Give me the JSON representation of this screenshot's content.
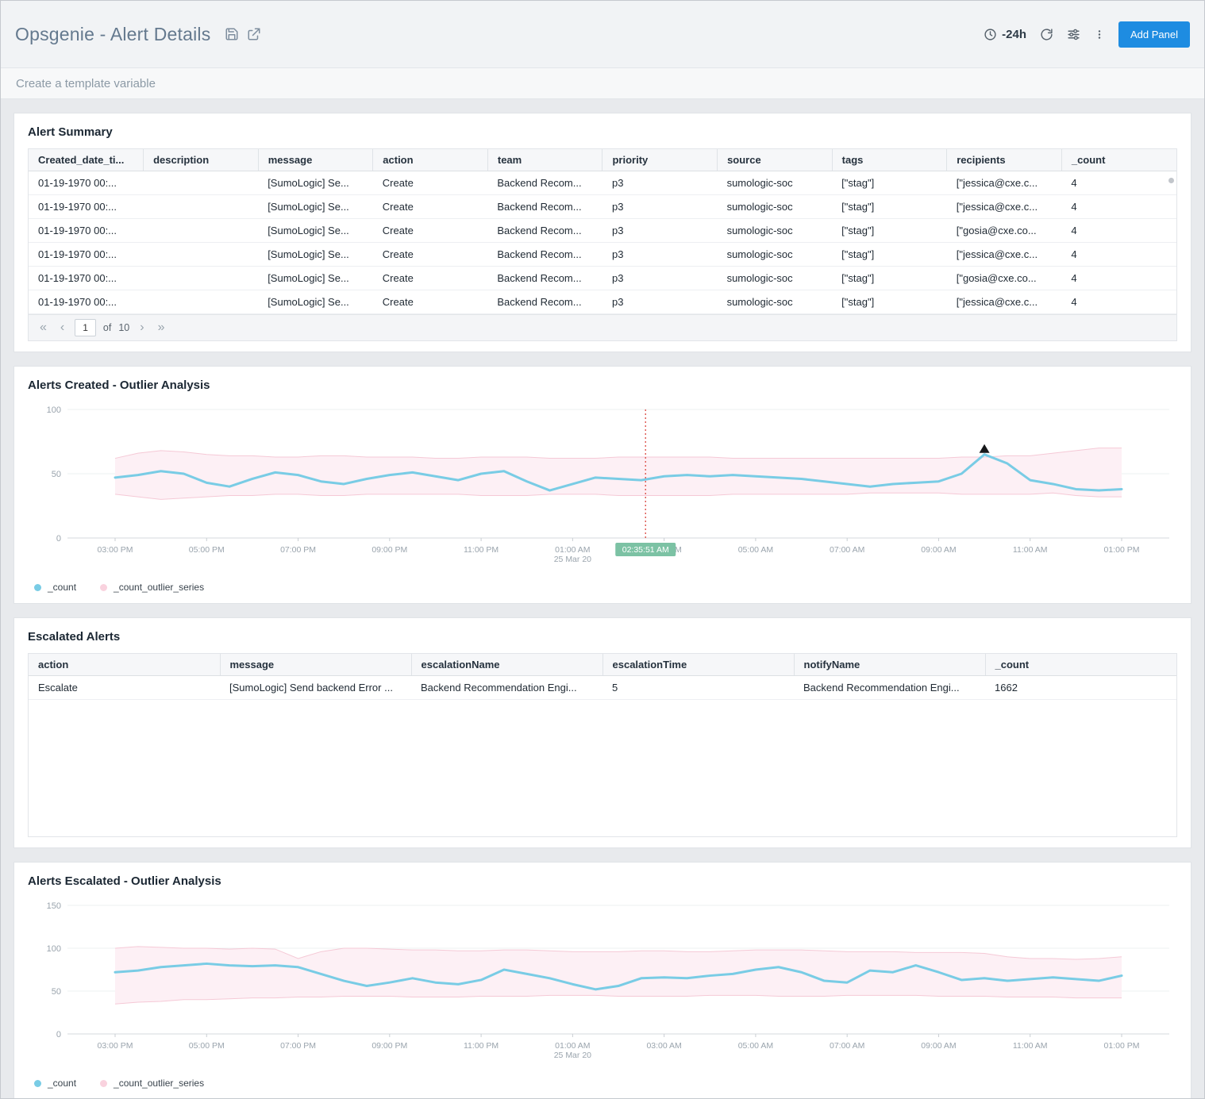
{
  "header": {
    "title": "Opsgenie - Alert Details",
    "time_range": "-24h",
    "add_panel_label": "Add Panel"
  },
  "template_bar": {
    "label": "Create a template variable"
  },
  "panels": {
    "alert_summary": {
      "title": "Alert Summary",
      "table": {
        "columns": [
          "Created_date_ti...",
          "description",
          "message",
          "action",
          "team",
          "priority",
          "source",
          "tags",
          "recipients",
          "_count"
        ],
        "rows": [
          [
            "01-19-1970 00:...",
            "",
            "[SumoLogic] Se...",
            "Create",
            "Backend Recom...",
            "p3",
            "sumologic-soc",
            "[\"stag\"]",
            "[\"jessica@cxe.c...",
            "4"
          ],
          [
            "01-19-1970 00:...",
            "",
            "[SumoLogic] Se...",
            "Create",
            "Backend Recom...",
            "p3",
            "sumologic-soc",
            "[\"stag\"]",
            "[\"jessica@cxe.c...",
            "4"
          ],
          [
            "01-19-1970 00:...",
            "",
            "[SumoLogic] Se...",
            "Create",
            "Backend Recom...",
            "p3",
            "sumologic-soc",
            "[\"stag\"]",
            "[\"gosia@cxe.co...",
            "4"
          ],
          [
            "01-19-1970 00:...",
            "",
            "[SumoLogic] Se...",
            "Create",
            "Backend Recom...",
            "p3",
            "sumologic-soc",
            "[\"stag\"]",
            "[\"jessica@cxe.c...",
            "4"
          ],
          [
            "01-19-1970 00:...",
            "",
            "[SumoLogic] Se...",
            "Create",
            "Backend Recom...",
            "p3",
            "sumologic-soc",
            "[\"stag\"]",
            "[\"gosia@cxe.co...",
            "4"
          ],
          [
            "01-19-1970 00:...",
            "",
            "[SumoLogic] Se...",
            "Create",
            "Backend Recom...",
            "p3",
            "sumologic-soc",
            "[\"stag\"]",
            "[\"jessica@cxe.c...",
            "4"
          ]
        ]
      },
      "pagination": {
        "current_page": "1",
        "of_label": "of",
        "total_pages": "10"
      }
    },
    "alerts_created_outlier": {
      "title": "Alerts Created - Outlier Analysis"
    },
    "escalated_alerts": {
      "title": "Escalated Alerts",
      "table": {
        "columns": [
          "action",
          "message",
          "escalationName",
          "escalationTime",
          "notifyName",
          "_count"
        ],
        "rows": [
          [
            "Escalate",
            "[SumoLogic] Send backend Error ...",
            "Backend Recommendation Engi...",
            "5",
            "Backend Recommendation Engi...",
            "1662"
          ]
        ]
      }
    },
    "alerts_escalated_outlier": {
      "title": "Alerts Escalated - Outlier Analysis"
    }
  },
  "chart_data": [
    {
      "type": "line",
      "title": "Alerts Created - Outlier Analysis",
      "xtick_labels": [
        "03:00 PM",
        "05:00 PM",
        "07:00 PM",
        "09:00 PM",
        "11:00 PM",
        "01:00 AM",
        "03:00 AM",
        "05:00 AM",
        "07:00 AM",
        "09:00 AM",
        "11:00 AM",
        "01:00 PM"
      ],
      "xtick_sublabels": [
        null,
        null,
        null,
        null,
        null,
        "25 Mar 20",
        null,
        null,
        null,
        null,
        null,
        null
      ],
      "yticks": [
        0,
        50,
        100
      ],
      "ylim": [
        0,
        100
      ],
      "grid": true,
      "legend_position": "bottom-left",
      "series": [
        {
          "name": "_count",
          "color": "#79cce5",
          "values": [
            47,
            49,
            52,
            50,
            43,
            40,
            46,
            51,
            49,
            44,
            42,
            46,
            49,
            51,
            48,
            45,
            50,
            52,
            44,
            37,
            42,
            47,
            46,
            45,
            48,
            49,
            48,
            49,
            48,
            47,
            46,
            44,
            42,
            40,
            42,
            43,
            44,
            50,
            65,
            58,
            45,
            42,
            38,
            37,
            38
          ]
        },
        {
          "name": "_count_outlier_series",
          "color": "#f5c9d6",
          "fill": "#fdf0f5",
          "upper": [
            62,
            66,
            68,
            67,
            65,
            64,
            64,
            63,
            63,
            64,
            64,
            63,
            63,
            63,
            62,
            62,
            63,
            63,
            63,
            62,
            62,
            62,
            63,
            63,
            63,
            63,
            63,
            62,
            62,
            62,
            62,
            62,
            62,
            62,
            62,
            62,
            62,
            63,
            63,
            64,
            64,
            66,
            68,
            70,
            70
          ],
          "lower": [
            34,
            32,
            30,
            31,
            32,
            33,
            33,
            34,
            34,
            33,
            33,
            34,
            34,
            34,
            34,
            34,
            33,
            33,
            33,
            34,
            34,
            34,
            33,
            33,
            33,
            33,
            33,
            34,
            34,
            34,
            34,
            34,
            34,
            35,
            35,
            35,
            35,
            34,
            34,
            34,
            34,
            35,
            33,
            32,
            32
          ]
        }
      ],
      "annotation": {
        "selected_time": "02:35:51 AM",
        "vline_frac": 0.527,
        "marker_index": 38
      }
    },
    {
      "type": "line",
      "title": "Alerts Escalated - Outlier Analysis",
      "xtick_labels": [
        "03:00 PM",
        "05:00 PM",
        "07:00 PM",
        "09:00 PM",
        "11:00 PM",
        "01:00 AM",
        "03:00 AM",
        "05:00 AM",
        "07:00 AM",
        "09:00 AM",
        "11:00 AM",
        "01:00 PM"
      ],
      "xtick_sublabels": [
        null,
        null,
        null,
        null,
        null,
        "25 Mar 20",
        null,
        null,
        null,
        null,
        null,
        null
      ],
      "yticks": [
        0,
        50,
        100,
        150
      ],
      "ylim": [
        0,
        150
      ],
      "grid": true,
      "legend_position": "bottom-left",
      "series": [
        {
          "name": "_count",
          "color": "#79cce5",
          "values": [
            72,
            74,
            78,
            80,
            82,
            80,
            79,
            80,
            78,
            70,
            62,
            56,
            60,
            65,
            60,
            58,
            63,
            75,
            70,
            65,
            58,
            52,
            56,
            65,
            66,
            65,
            68,
            70,
            75,
            78,
            72,
            62,
            60,
            74,
            72,
            80,
            72,
            63,
            65,
            62,
            64,
            66,
            64,
            62,
            68
          ]
        },
        {
          "name": "_count_outlier_series",
          "color": "#f5c9d6",
          "fill": "#fdf0f5",
          "upper": [
            100,
            102,
            101,
            100,
            100,
            99,
            100,
            99,
            88,
            96,
            100,
            100,
            99,
            98,
            98,
            97,
            97,
            98,
            98,
            97,
            96,
            96,
            96,
            97,
            97,
            96,
            96,
            97,
            98,
            98,
            98,
            97,
            96,
            96,
            96,
            95,
            95,
            95,
            94,
            90,
            88,
            88,
            87,
            88,
            90
          ],
          "lower": [
            35,
            37,
            38,
            40,
            40,
            41,
            42,
            42,
            43,
            43,
            44,
            44,
            44,
            43,
            43,
            43,
            44,
            44,
            44,
            45,
            45,
            45,
            44,
            44,
            44,
            44,
            45,
            45,
            45,
            44,
            44,
            44,
            45,
            45,
            45,
            45,
            44,
            44,
            44,
            43,
            43,
            43,
            42,
            42,
            42
          ]
        }
      ]
    }
  ],
  "colors": {
    "accent_blue": "#1e8ce1",
    "line_blue": "#79cce5",
    "outlier_pink": "#f5c9d6",
    "outlier_fill": "#fdf0f5",
    "badge_green": "#7cc2a4",
    "vline_red": "#dd544d"
  }
}
